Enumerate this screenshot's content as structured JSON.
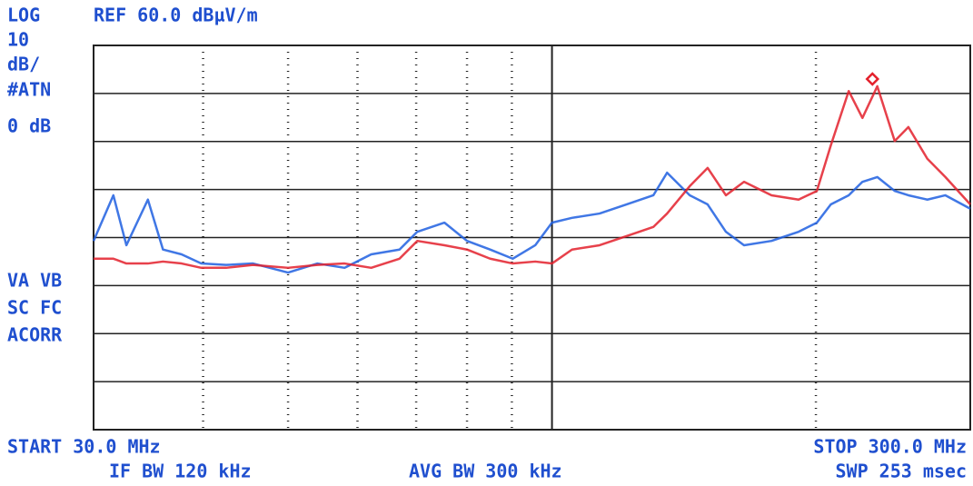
{
  "chart_data": {
    "type": "line",
    "header_left": "LOG",
    "header_ref": "REF 60.0 dBµV/m",
    "side_labels_top": [
      "10",
      "dB/",
      "#ATN",
      "0 dB"
    ],
    "side_labels_bottom": [
      "VA VB",
      "SC FC",
      "ACORR"
    ],
    "start_label": "START 30.0 MHz",
    "stop_label": "STOP 300.0 MHz",
    "if_bw_label": "IF BW 120 kHz",
    "avg_bw_label": "AVG BW 300 kHz",
    "sweep_label": "SWP 253 msec",
    "x_log": true,
    "xlim": [
      30,
      300
    ],
    "xticks": [
      40,
      50,
      60,
      70,
      80,
      90,
      100,
      200
    ],
    "ylim": [
      -20,
      60
    ],
    "yticks": [
      -20,
      -10,
      0,
      10,
      20,
      30,
      40,
      50,
      60
    ],
    "x": [
      30,
      31.6,
      32.7,
      34.6,
      36,
      37.8,
      39.8,
      42.5,
      45.6,
      50,
      54,
      58,
      62.2,
      67,
      70.2,
      75.4,
      80,
      85,
      90.2,
      95.7,
      100,
      105.4,
      113.3,
      121.6,
      130.5,
      135.3,
      143.6,
      150.5,
      157.9,
      165.6,
      178,
      191.1,
      200.5,
      208,
      218,
      226,
      235,
      246,
      255,
      268,
      281,
      300
    ],
    "series": [
      {
        "color": "#1e5fe0",
        "values": [
          19.3,
          28.8,
          18.4,
          27.9,
          17.5,
          16.5,
          14.6,
          14.3,
          14.6,
          12.7,
          14.6,
          13.7,
          16.5,
          17.5,
          21.2,
          23.1,
          19.3,
          17.5,
          15.6,
          18.4,
          23.1,
          24.1,
          25.0,
          26.9,
          28.8,
          33.5,
          28.8,
          26.9,
          21.2,
          18.4,
          19.3,
          21.2,
          23.1,
          26.9,
          28.8,
          31.6,
          32.6,
          29.7,
          28.8,
          27.9,
          28.8,
          26.0
        ]
      },
      {
        "color": "#e3202b",
        "values": [
          15.6,
          15.6,
          14.6,
          14.6,
          15.0,
          14.6,
          13.7,
          13.7,
          14.3,
          13.7,
          14.3,
          14.6,
          13.7,
          15.6,
          19.3,
          18.4,
          17.5,
          15.6,
          14.6,
          15.0,
          14.6,
          17.5,
          18.4,
          20.3,
          22.2,
          25.0,
          30.7,
          34.5,
          28.8,
          31.6,
          28.8,
          27.9,
          29.7,
          39.2,
          50.5,
          44.9,
          51.5,
          40.1,
          43.0,
          36.4,
          32.6,
          26.9
        ]
      }
    ],
    "marker": {
      "x": 232,
      "y": 53,
      "color": "#e3202b"
    },
    "grid": true
  }
}
